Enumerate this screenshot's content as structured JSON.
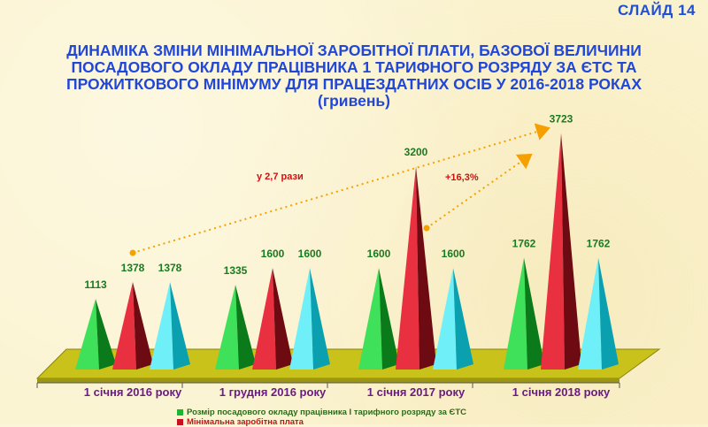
{
  "slide_label": "СЛАЙД 14",
  "title": "ДИНАМІКА ЗМІНИ МІНІМАЛЬНОЇ ЗАРОБІТНОЇ ПЛАТИ, БАЗОВОЇ ВЕЛИЧИНИ ПОСАДОВОГО ОКЛАДУ ПРАЦІВНИКА 1 ТАРИФНОГО РОЗРЯДУ ЗА ЄТС ТА ПРОЖИТКОВОГО МІНІМУМУ ДЛЯ ПРАЦЕЗДАТНИХ ОСІБ У 2016-2018 РОКАХ (гривень)",
  "chart_data": {
    "type": "bar",
    "categories": [
      "1 січня 2016 року",
      "1 грудня 2016 року",
      "1 січня 2017 року",
      "1 січня 2018 року"
    ],
    "series": [
      {
        "name": "Розмір посадового окладу працівника І тарифного розряду за ЄТС",
        "color": "#18b830",
        "values": [
          1113,
          1335,
          1600,
          1762
        ]
      },
      {
        "name": "Мінімальна заробітна плата",
        "color": "#c8101e",
        "values": [
          1378,
          1600,
          3200,
          3723
        ]
      },
      {
        "name": "",
        "color": "#22d4e0",
        "values": [
          1378,
          1600,
          1600,
          1762
        ]
      }
    ],
    "value_labels": [
      [
        "1113",
        "1378",
        "1378"
      ],
      [
        "1335",
        "1600",
        "1600"
      ],
      [
        "1600",
        "3200",
        "1600"
      ],
      [
        "1762",
        "3723",
        "1762"
      ]
    ],
    "annotations": [
      {
        "text": "у 2,7 рази",
        "from": "1 січня 2016 року / Мінімальна заробітна плата",
        "to": "1 січня 2018 року / Мінімальна заробітна плата"
      },
      {
        "text": "+16,3%",
        "from": "1 січня 2017 року / Мінімальна заробітна плата",
        "to": "1 січня 2018 року / Мінімальна заробітна плата"
      }
    ],
    "legend_position": "bottom",
    "grid": false
  },
  "legend": [
    {
      "label": "Розмір посадового окладу працівника І тарифного розряду за ЄТС",
      "color": "#18b830"
    },
    {
      "label": "Мінімальна заробітна плата",
      "color": "#c8101e"
    }
  ]
}
